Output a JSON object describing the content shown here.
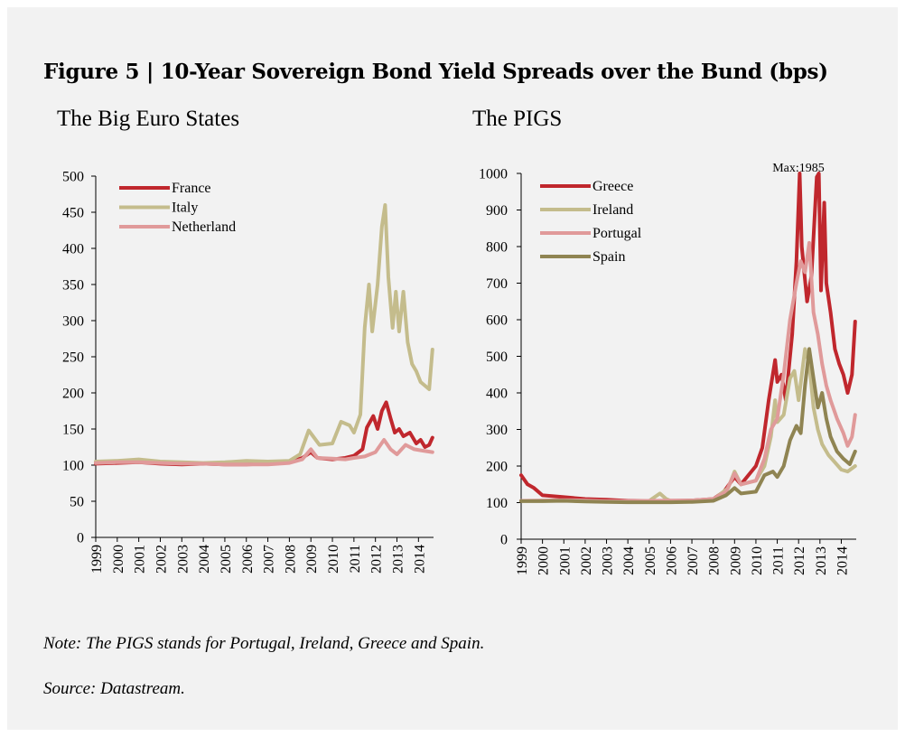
{
  "figure": {
    "title": "Figure 5 | 10-Year Sovereign Bond Yield Spreads over the Bund (bps)",
    "note": "Note: The PIGS stands for Portugal, Ireland, Greece and Spain.",
    "source": "Source: Datastream."
  },
  "chart_data": [
    {
      "type": "line",
      "title": "The Big Euro States",
      "xlabel": "",
      "ylabel": "",
      "xlim": [
        1999,
        2014.7
      ],
      "ylim": [
        0,
        500
      ],
      "yticks": [
        0,
        50,
        100,
        150,
        200,
        250,
        300,
        350,
        400,
        450,
        500
      ],
      "xtick_labels": [
        "1999",
        "2000",
        "2001",
        "2002",
        "2003",
        "2004",
        "2005",
        "2006",
        "2007",
        "2008",
        "2009",
        "2010",
        "2011",
        "2012",
        "2013",
        "2014"
      ],
      "grid": false,
      "legend": "top-left",
      "series": [
        {
          "name": "France",
          "color": "#c0272d",
          "points": [
            [
              1999,
              102
            ],
            [
              2000,
              103
            ],
            [
              2001,
              104
            ],
            [
              2002,
              102
            ],
            [
              2003,
              101
            ],
            [
              2004,
              102
            ],
            [
              2005,
              101
            ],
            [
              2006,
              101
            ],
            [
              2007,
              102
            ],
            [
              2008,
              104
            ],
            [
              2008.6,
              110
            ],
            [
              2009,
              118
            ],
            [
              2009.3,
              110
            ],
            [
              2010,
              108
            ],
            [
              2010.6,
              110
            ],
            [
              2011,
              113
            ],
            [
              2011.4,
              122
            ],
            [
              2011.6,
              152
            ],
            [
              2011.9,
              168
            ],
            [
              2012.1,
              150
            ],
            [
              2012.3,
              175
            ],
            [
              2012.5,
              187
            ],
            [
              2012.7,
              165
            ],
            [
              2012.9,
              145
            ],
            [
              2013.1,
              150
            ],
            [
              2013.3,
              140
            ],
            [
              2013.6,
              145
            ],
            [
              2013.9,
              130
            ],
            [
              2014.1,
              135
            ],
            [
              2014.3,
              125
            ],
            [
              2014.5,
              128
            ],
            [
              2014.65,
              138
            ]
          ]
        },
        {
          "name": "Italy",
          "color": "#c4bc8c",
          "points": [
            [
              1999,
              105
            ],
            [
              2000,
              106
            ],
            [
              2001,
              108
            ],
            [
              2002,
              105
            ],
            [
              2003,
              104
            ],
            [
              2004,
              103
            ],
            [
              2005,
              104
            ],
            [
              2006,
              106
            ],
            [
              2007,
              105
            ],
            [
              2008,
              106
            ],
            [
              2008.5,
              115
            ],
            [
              2008.9,
              148
            ],
            [
              2009.1,
              140
            ],
            [
              2009.4,
              128
            ],
            [
              2010,
              130
            ],
            [
              2010.4,
              160
            ],
            [
              2010.8,
              155
            ],
            [
              2011,
              145
            ],
            [
              2011.3,
              170
            ],
            [
              2011.5,
              290
            ],
            [
              2011.7,
              350
            ],
            [
              2011.85,
              285
            ],
            [
              2012.1,
              350
            ],
            [
              2012.3,
              430
            ],
            [
              2012.45,
              460
            ],
            [
              2012.6,
              360
            ],
            [
              2012.8,
              290
            ],
            [
              2012.95,
              340
            ],
            [
              2013.1,
              285
            ],
            [
              2013.3,
              340
            ],
            [
              2013.5,
              270
            ],
            [
              2013.7,
              240
            ],
            [
              2013.9,
              230
            ],
            [
              2014.1,
              215
            ],
            [
              2014.3,
              210
            ],
            [
              2014.5,
              205
            ],
            [
              2014.65,
              260
            ]
          ]
        },
        {
          "name": "Netherland",
          "color": "#e09a9a",
          "points": [
            [
              1999,
              103
            ],
            [
              2000,
              104
            ],
            [
              2001,
              104
            ],
            [
              2002,
              103
            ],
            [
              2003,
              102
            ],
            [
              2004,
              102
            ],
            [
              2005,
              101
            ],
            [
              2006,
              101
            ],
            [
              2007,
              101
            ],
            [
              2008,
              103
            ],
            [
              2008.6,
              108
            ],
            [
              2009,
              122
            ],
            [
              2009.3,
              110
            ],
            [
              2010,
              109
            ],
            [
              2010.6,
              108
            ],
            [
              2011,
              110
            ],
            [
              2011.5,
              112
            ],
            [
              2012,
              118
            ],
            [
              2012.4,
              135
            ],
            [
              2012.7,
              122
            ],
            [
              2013,
              115
            ],
            [
              2013.4,
              128
            ],
            [
              2013.8,
              122
            ],
            [
              2014.2,
              120
            ],
            [
              2014.65,
              118
            ]
          ]
        }
      ]
    },
    {
      "type": "line",
      "title": "The PIGS",
      "xlabel": "",
      "ylabel": "",
      "xlim": [
        1999,
        2014.7
      ],
      "ylim": [
        0,
        1000
      ],
      "yticks": [
        0,
        100,
        200,
        300,
        400,
        500,
        600,
        700,
        800,
        900,
        1000
      ],
      "xtick_labels": [
        "1999",
        "2000",
        "2001",
        "2002",
        "2003",
        "2004",
        "2005",
        "2006",
        "2007",
        "2008",
        "2009",
        "2010",
        "2011",
        "2012",
        "2013",
        "2014"
      ],
      "grid": false,
      "legend": "top-left",
      "annotation": "Max:1985",
      "series": [
        {
          "name": "Greece",
          "color": "#c0272d",
          "points": [
            [
              1999,
              175
            ],
            [
              1999.3,
              150
            ],
            [
              1999.6,
              140
            ],
            [
              2000,
              120
            ],
            [
              2001,
              115
            ],
            [
              2002,
              110
            ],
            [
              2003,
              108
            ],
            [
              2004,
              105
            ],
            [
              2005,
              105
            ],
            [
              2006,
              105
            ],
            [
              2007,
              106
            ],
            [
              2008,
              110
            ],
            [
              2008.5,
              130
            ],
            [
              2009,
              170
            ],
            [
              2009.3,
              150
            ],
            [
              2010,
              200
            ],
            [
              2010.3,
              250
            ],
            [
              2010.6,
              380
            ],
            [
              2010.9,
              490
            ],
            [
              2011,
              430
            ],
            [
              2011.2,
              450
            ],
            [
              2011.4,
              380
            ],
            [
              2011.7,
              560
            ],
            [
              2011.9,
              760
            ],
            [
              2012.05,
              1000
            ],
            [
              2012.15,
              800
            ],
            [
              2012.4,
              650
            ],
            [
              2012.6,
              720
            ],
            [
              2012.85,
              990
            ],
            [
              2012.95,
              1000
            ],
            [
              2013.05,
              680
            ],
            [
              2013.2,
              920
            ],
            [
              2013.3,
              700
            ],
            [
              2013.5,
              620
            ],
            [
              2013.7,
              520
            ],
            [
              2013.9,
              480
            ],
            [
              2014.1,
              450
            ],
            [
              2014.3,
              400
            ],
            [
              2014.5,
              450
            ],
            [
              2014.65,
              595
            ]
          ]
        },
        {
          "name": "Ireland",
          "color": "#c4bc8c",
          "points": [
            [
              1999,
              105
            ],
            [
              2000,
              105
            ],
            [
              2001,
              106
            ],
            [
              2002,
              104
            ],
            [
              2003,
              103
            ],
            [
              2004,
              103
            ],
            [
              2005,
              105
            ],
            [
              2005.5,
              125
            ],
            [
              2005.8,
              110
            ],
            [
              2006,
              105
            ],
            [
              2007,
              105
            ],
            [
              2008,
              108
            ],
            [
              2008.7,
              140
            ],
            [
              2009,
              185
            ],
            [
              2009.3,
              150
            ],
            [
              2010,
              160
            ],
            [
              2010.4,
              200
            ],
            [
              2010.7,
              280
            ],
            [
              2010.9,
              380
            ],
            [
              2011,
              320
            ],
            [
              2011.3,
              340
            ],
            [
              2011.6,
              440
            ],
            [
              2011.8,
              460
            ],
            [
              2012,
              380
            ],
            [
              2012.3,
              520
            ],
            [
              2012.5,
              480
            ],
            [
              2012.7,
              360
            ],
            [
              2012.9,
              300
            ],
            [
              2013.1,
              260
            ],
            [
              2013.4,
              230
            ],
            [
              2013.7,
              210
            ],
            [
              2014,
              190
            ],
            [
              2014.3,
              185
            ],
            [
              2014.65,
              200
            ]
          ]
        },
        {
          "name": "Portugal",
          "color": "#e09a9a",
          "points": [
            [
              1999,
              105
            ],
            [
              2000,
              106
            ],
            [
              2001,
              107
            ],
            [
              2002,
              106
            ],
            [
              2003,
              104
            ],
            [
              2004,
              104
            ],
            [
              2005,
              105
            ],
            [
              2006,
              106
            ],
            [
              2007,
              106
            ],
            [
              2008,
              110
            ],
            [
              2008.6,
              130
            ],
            [
              2009,
              180
            ],
            [
              2009.3,
              150
            ],
            [
              2010,
              160
            ],
            [
              2010.4,
              220
            ],
            [
              2010.7,
              300
            ],
            [
              2011,
              330
            ],
            [
              2011.3,
              450
            ],
            [
              2011.6,
              600
            ],
            [
              2011.9,
              700
            ],
            [
              2012.1,
              760
            ],
            [
              2012.3,
              730
            ],
            [
              2012.5,
              810
            ],
            [
              2012.7,
              620
            ],
            [
              2012.9,
              560
            ],
            [
              2013.1,
              480
            ],
            [
              2013.3,
              420
            ],
            [
              2013.5,
              380
            ],
            [
              2013.8,
              330
            ],
            [
              2014.1,
              290
            ],
            [
              2014.3,
              255
            ],
            [
              2014.5,
              280
            ],
            [
              2014.65,
              340
            ]
          ]
        },
        {
          "name": "Spain",
          "color": "#8f8452",
          "points": [
            [
              1999,
              104
            ],
            [
              2000,
              104
            ],
            [
              2001,
              105
            ],
            [
              2002,
              103
            ],
            [
              2003,
              102
            ],
            [
              2004,
              101
            ],
            [
              2005,
              101
            ],
            [
              2006,
              101
            ],
            [
              2007,
              102
            ],
            [
              2008,
              105
            ],
            [
              2008.6,
              120
            ],
            [
              2009,
              140
            ],
            [
              2009.3,
              125
            ],
            [
              2010,
              130
            ],
            [
              2010.4,
              175
            ],
            [
              2010.8,
              185
            ],
            [
              2011,
              170
            ],
            [
              2011.3,
              200
            ],
            [
              2011.6,
              270
            ],
            [
              2011.9,
              310
            ],
            [
              2012.1,
              290
            ],
            [
              2012.3,
              420
            ],
            [
              2012.5,
              520
            ],
            [
              2012.7,
              440
            ],
            [
              2012.9,
              360
            ],
            [
              2013.1,
              400
            ],
            [
              2013.3,
              330
            ],
            [
              2013.5,
              280
            ],
            [
              2013.8,
              240
            ],
            [
              2014.1,
              220
            ],
            [
              2014.4,
              205
            ],
            [
              2014.65,
              240
            ]
          ]
        }
      ]
    }
  ]
}
